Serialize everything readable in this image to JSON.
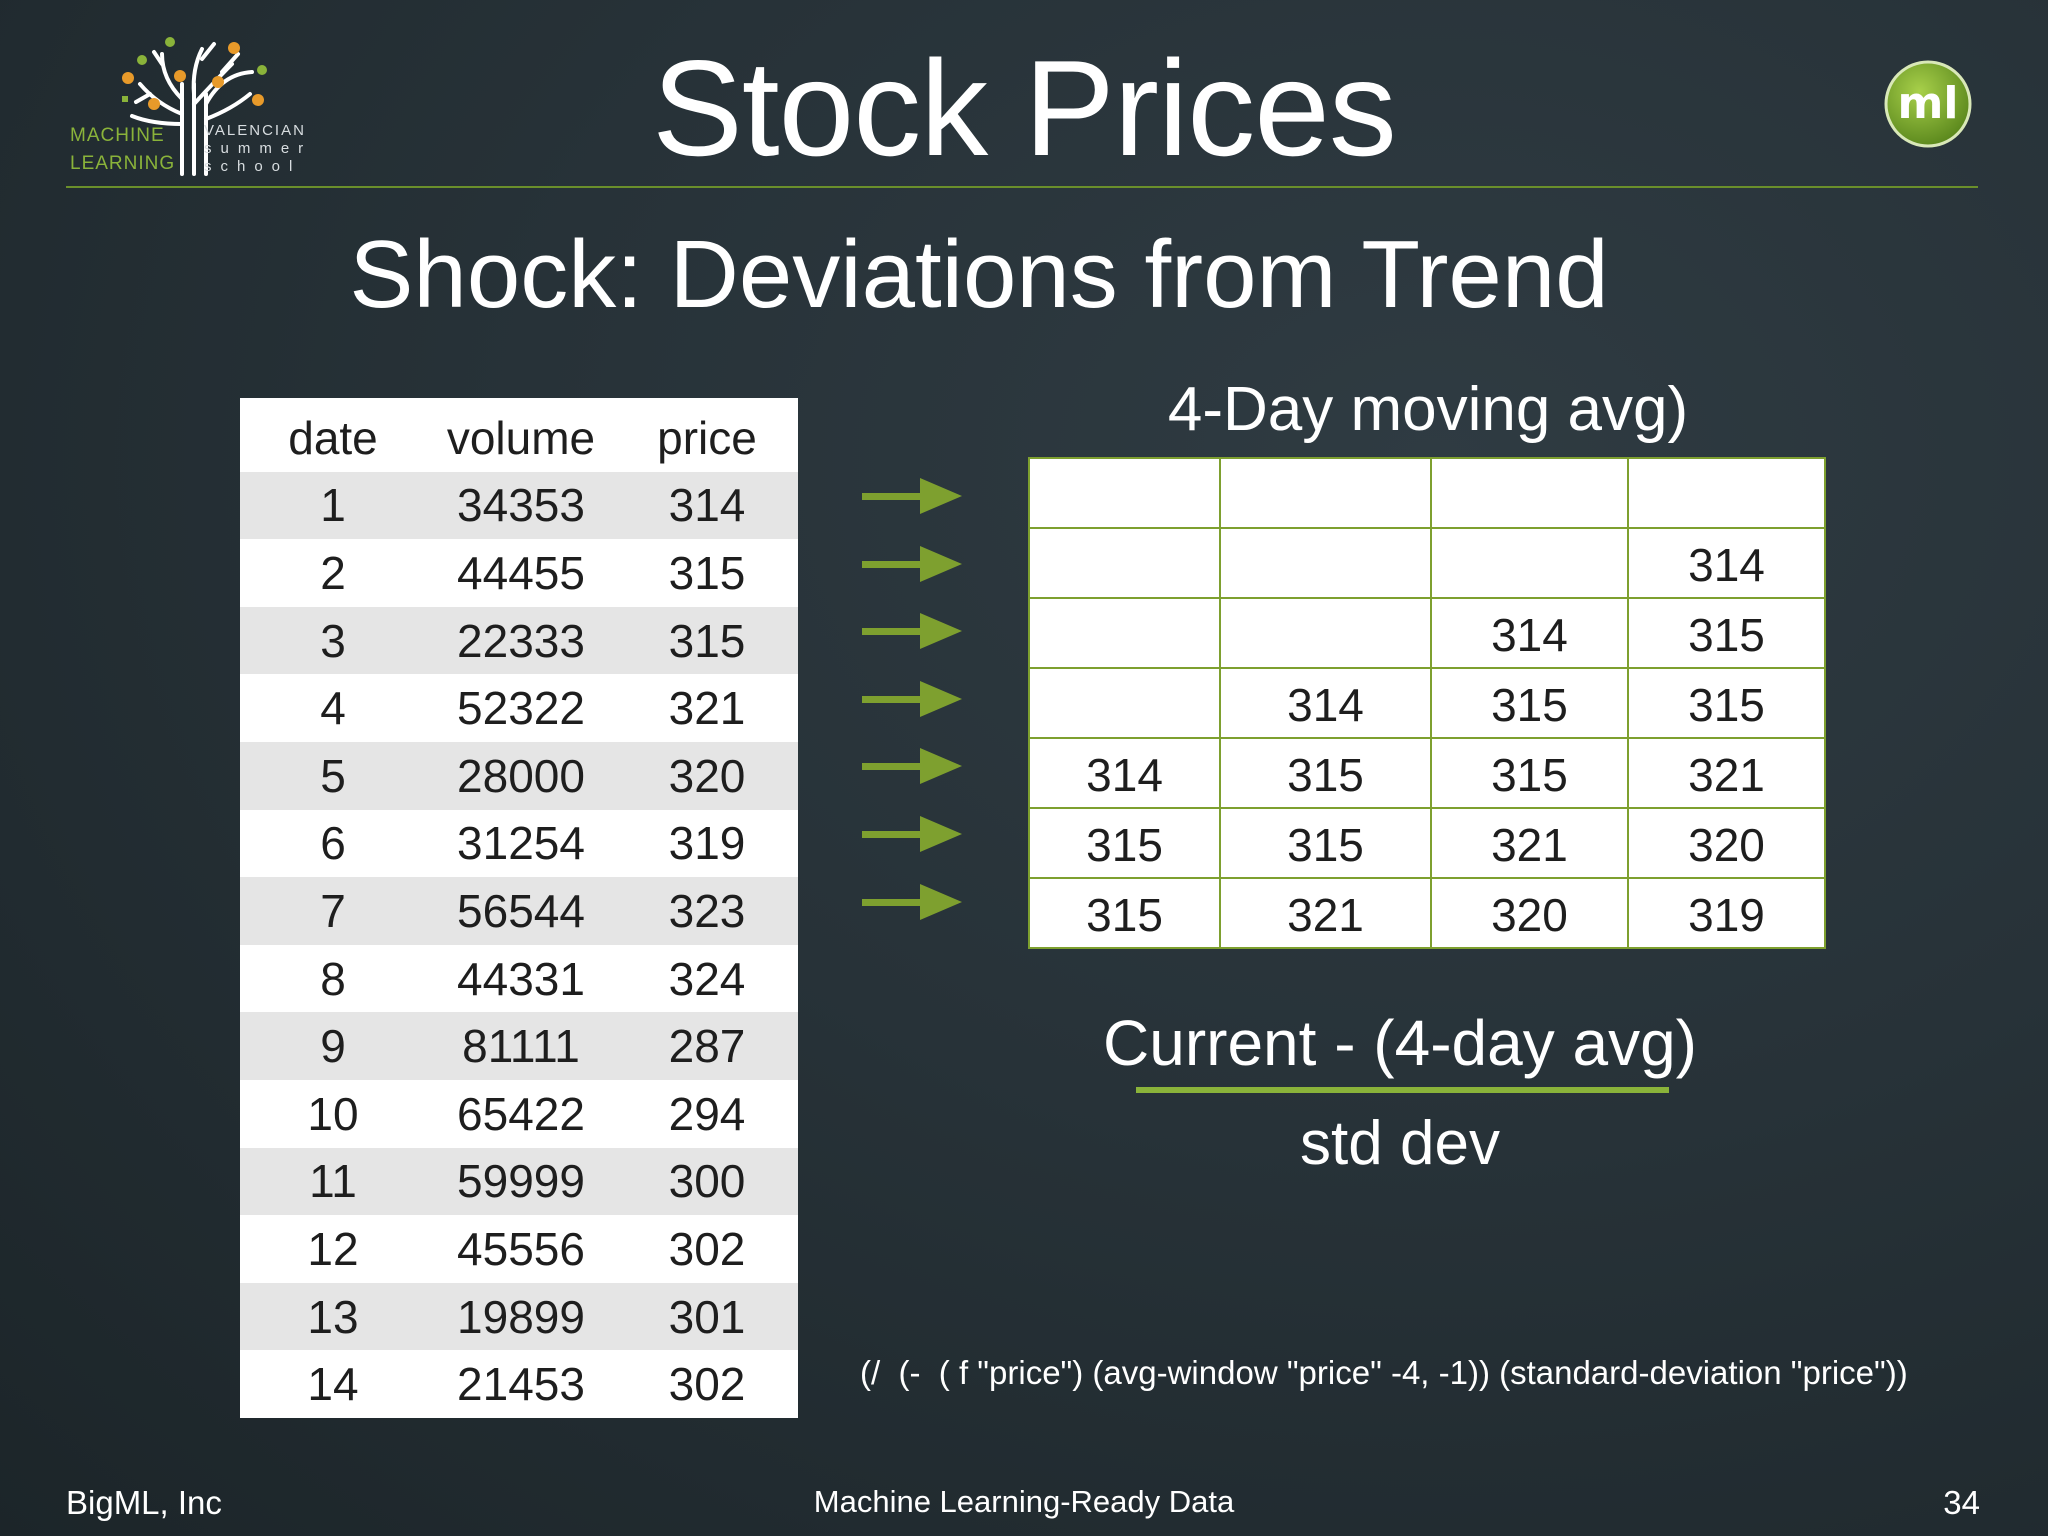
{
  "header": {
    "title": "Stock Prices",
    "logo_left": {
      "line1": "MACHINE",
      "line2": "LEARNING",
      "line3": "VALENCIAN",
      "line4": "summer",
      "line5": "school"
    },
    "logo_right_text": "ml"
  },
  "subtitle": "Shock: Deviations from Trend",
  "table": {
    "headers": [
      "date",
      "volume",
      "price"
    ],
    "rows": [
      [
        "1",
        "34353",
        "314"
      ],
      [
        "2",
        "44455",
        "315"
      ],
      [
        "3",
        "22333",
        "315"
      ],
      [
        "4",
        "52322",
        "321"
      ],
      [
        "5",
        "28000",
        "320"
      ],
      [
        "6",
        "31254",
        "319"
      ],
      [
        "7",
        "56544",
        "323"
      ],
      [
        "8",
        "44331",
        "324"
      ],
      [
        "9",
        "81111",
        "287"
      ],
      [
        "10",
        "65422",
        "294"
      ],
      [
        "11",
        "59999",
        "300"
      ],
      [
        "12",
        "45556",
        "302"
      ],
      [
        "13",
        "19899",
        "301"
      ],
      [
        "14",
        "21453",
        "302"
      ]
    ]
  },
  "moving_avg": {
    "title": "4-Day moving avg)",
    "rows": [
      [
        "",
        "",
        "",
        ""
      ],
      [
        "",
        "",
        "",
        "314"
      ],
      [
        "",
        "",
        "314",
        "315"
      ],
      [
        "",
        "314",
        "315",
        "315"
      ],
      [
        "314",
        "315",
        "315",
        "321"
      ],
      [
        "315",
        "315",
        "321",
        "320"
      ],
      [
        "315",
        "321",
        "320",
        "319"
      ]
    ]
  },
  "formula": {
    "numerator": "Current - (4-day avg)",
    "denominator": "std dev",
    "code": "(/  (-  ( f \"price\") (avg-window \"price\" -4, -1)) (standard-deviation \"price\"))"
  },
  "footer": {
    "left": "BigML, Inc",
    "center": "Machine Learning-Ready Data",
    "page": "34"
  },
  "colors": {
    "accent_green": "#8ab33a",
    "background": "#273238"
  }
}
